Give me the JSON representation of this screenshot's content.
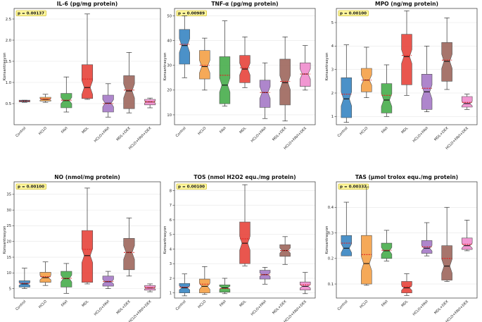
{
  "colors": {
    "blue": "#3c88c4",
    "orange": "#f5a24a",
    "green": "#4caf50",
    "red": "#e8483f",
    "purple": "#a87cc8",
    "brown": "#a06a60",
    "pink": "#f08fcf",
    "pvalue_bg": "#fff8a0",
    "mean_line": "#e02020"
  },
  "categories": [
    "Control",
    "HCLO",
    "FAVI",
    "MDL",
    "HCLO+FAVI",
    "MDL+DEX",
    "HCLO+FAVI+DEX"
  ],
  "chart_data": [
    {
      "type": "box",
      "title": "IL-6 (pg/mg protein)",
      "ylabel": "Konsantrasyon",
      "p_value": "p = 0.00137",
      "ylim": [
        0.0,
        2.75
      ],
      "yticks": [
        0.5,
        1.0,
        1.5,
        2.0,
        2.5
      ],
      "ytick_labels": [
        "0.5",
        "1.0",
        "1.5",
        "2.0",
        "2.5"
      ],
      "series": [
        {
          "name": "Control",
          "color": "blue",
          "whisker_low": 0.53,
          "q1": 0.54,
          "median": 0.56,
          "q3": 0.58,
          "whisker_high": 0.58,
          "mean": 0.56
        },
        {
          "name": "HCLO",
          "color": "orange",
          "whisker_low": 0.53,
          "q1": 0.56,
          "median": 0.6,
          "q3": 0.65,
          "whisker_high": 0.72,
          "mean": 0.61
        },
        {
          "name": "FAVI",
          "color": "green",
          "whisker_low": 0.3,
          "q1": 0.4,
          "median": 0.57,
          "q3": 0.74,
          "whisker_high": 1.13,
          "mean": 0.58
        },
        {
          "name": "MDL",
          "color": "red",
          "whisker_low": 0.6,
          "q1": 0.62,
          "median": 0.88,
          "q3": 1.42,
          "whisker_high": 2.62,
          "mean": 1.08
        },
        {
          "name": "HCLO+FAVI",
          "color": "purple",
          "whisker_low": 0.18,
          "q1": 0.3,
          "median": 0.51,
          "q3": 0.7,
          "whisker_high": 0.97,
          "mean": 0.5
        },
        {
          "name": "MDL+DEX",
          "color": "brown",
          "whisker_low": 0.28,
          "q1": 0.38,
          "median": 0.8,
          "q3": 1.16,
          "whisker_high": 1.71,
          "mean": 0.82
        },
        {
          "name": "HCLO+FAVI+DEX",
          "color": "pink",
          "whisker_low": 0.4,
          "q1": 0.47,
          "median": 0.54,
          "q3": 0.6,
          "whisker_high": 0.63,
          "mean": 0.54
        }
      ]
    },
    {
      "type": "box",
      "title": "TNF-α (pg/mg protein)",
      "ylabel": "Konsantrasyon",
      "p_value": "p = 0.00989",
      "ylim": [
        6,
        53
      ],
      "yticks": [
        10,
        20,
        30,
        40,
        50
      ],
      "ytick_labels": [
        "10",
        "20",
        "30",
        "40",
        "50"
      ],
      "series": [
        {
          "name": "Control",
          "color": "blue",
          "whisker_low": 25,
          "q1": 30.5,
          "median": 38,
          "q3": 44.5,
          "whisker_high": 50,
          "mean": 38.5
        },
        {
          "name": "HCLO",
          "color": "orange",
          "whisker_low": 20,
          "q1": 24.5,
          "median": 29.5,
          "q3": 36,
          "whisker_high": 41,
          "mean": 30
        },
        {
          "name": "FAVI",
          "color": "green",
          "whisker_low": 13.5,
          "q1": 14.5,
          "median": 22,
          "q3": 33.5,
          "whisker_high": 48,
          "mean": 26
        },
        {
          "name": "MDL",
          "color": "red",
          "whisker_low": 21,
          "q1": 23,
          "median": 28.5,
          "q3": 34,
          "whisker_high": 41.5,
          "mean": 29
        },
        {
          "name": "HCLO+FAVI",
          "color": "purple",
          "whisker_low": 8.5,
          "q1": 13,
          "median": 19,
          "q3": 24,
          "whisker_high": 31,
          "mean": 19
        },
        {
          "name": "MDL+DEX",
          "color": "brown",
          "whisker_low": 7.5,
          "q1": 14,
          "median": 23,
          "q3": 32.5,
          "whisker_high": 41.5,
          "mean": 23.5
        },
        {
          "name": "HCLO+FAVI+DEX",
          "color": "pink",
          "whisker_low": 20,
          "q1": 21.5,
          "median": 26.5,
          "q3": 31,
          "whisker_high": 38,
          "mean": 26.5
        }
      ]
    },
    {
      "type": "box",
      "title": "MPO (ng/mg protein)",
      "ylabel": "Konsantrasyon",
      "p_value": "p = 0.00100",
      "ylim": [
        0.65,
        5.6
      ],
      "yticks": [
        1,
        2,
        3,
        4,
        5
      ],
      "ytick_labels": [
        "1",
        "2",
        "3",
        "4",
        "5"
      ],
      "series": [
        {
          "name": "Control",
          "color": "blue",
          "whisker_low": 0.75,
          "q1": 0.95,
          "median": 1.75,
          "q3": 2.65,
          "whisker_high": 4.05,
          "mean": 1.95
        },
        {
          "name": "HCLO",
          "color": "orange",
          "whisker_low": 1.8,
          "q1": 2.05,
          "median": 2.55,
          "q3": 3.05,
          "whisker_high": 3.95,
          "mean": 2.55
        },
        {
          "name": "FAVI",
          "color": "green",
          "whisker_low": 1.0,
          "q1": 1.15,
          "median": 1.7,
          "q3": 2.4,
          "whisker_high": 3.2,
          "mean": 1.9
        },
        {
          "name": "MDL",
          "color": "red",
          "whisker_low": 1.9,
          "q1": 2.35,
          "median": 3.55,
          "q3": 4.5,
          "whisker_high": 5.5,
          "mean": 3.6
        },
        {
          "name": "HCLO+FAVI",
          "color": "purple",
          "whisker_low": 1.2,
          "q1": 1.3,
          "median": 2.05,
          "q3": 2.8,
          "whisker_high": 4.0,
          "mean": 2.2
        },
        {
          "name": "MDL+DEX",
          "color": "brown",
          "whisker_low": 2.15,
          "q1": 2.5,
          "median": 3.35,
          "q3": 4.15,
          "whisker_high": 5.2,
          "mean": 3.4
        },
        {
          "name": "HCLO+FAVI+DEX",
          "color": "pink",
          "whisker_low": 1.3,
          "q1": 1.4,
          "median": 1.55,
          "q3": 1.85,
          "whisker_high": 1.95,
          "mean": 1.6
        }
      ]
    },
    {
      "type": "box",
      "title": "NO (nmol/mg protein)",
      "ylabel": "Konsantrasyon",
      "p_value": "p = 0.00100",
      "ylim": [
        2,
        39
      ],
      "yticks": [
        5,
        10,
        15,
        20,
        25,
        30,
        35
      ],
      "ytick_labels": [
        "5",
        "10",
        "15",
        "20",
        "25",
        "30",
        "35"
      ],
      "series": [
        {
          "name": "Control",
          "color": "blue",
          "whisker_low": 5,
          "q1": 5.5,
          "median": 6.5,
          "q3": 7.5,
          "whisker_high": 11.5,
          "mean": 6.7
        },
        {
          "name": "HCLO",
          "color": "orange",
          "whisker_low": 6,
          "q1": 7,
          "median": 8.5,
          "q3": 10.2,
          "whisker_high": 13.5,
          "mean": 8.8
        },
        {
          "name": "FAVI",
          "color": "green",
          "whisker_low": 3.5,
          "q1": 5.5,
          "median": 8.2,
          "q3": 10.5,
          "whisker_high": 13,
          "mean": 8.3
        },
        {
          "name": "MDL",
          "color": "red",
          "whisker_low": 6.5,
          "q1": 7,
          "median": 15.5,
          "q3": 23.5,
          "whisker_high": 37,
          "mean": 17.5
        },
        {
          "name": "HCLO+FAVI",
          "color": "purple",
          "whisker_low": 5,
          "q1": 5.8,
          "median": 7.2,
          "q3": 9,
          "whisker_high": 10.5,
          "mean": 7.3
        },
        {
          "name": "MDL+DEX",
          "color": "brown",
          "whisker_low": 9,
          "q1": 11,
          "median": 16.5,
          "q3": 21,
          "whisker_high": 27.5,
          "mean": 16.5
        },
        {
          "name": "HCLO+FAVI+DEX",
          "color": "pink",
          "whisker_low": 4,
          "q1": 4.5,
          "median": 5.2,
          "q3": 6,
          "whisker_high": 6.5,
          "mean": 5.3
        }
      ]
    },
    {
      "type": "box",
      "title": "TOS (nmol H2O2 equ./mg protein)",
      "ylabel": "Konsantrasyon",
      "p_value": "p = 0.00100",
      "ylim": [
        0.65,
        8.6
      ],
      "yticks": [
        1,
        2,
        3,
        4,
        5,
        6,
        7,
        8
      ],
      "ytick_labels": [
        "1",
        "2",
        "3",
        "4",
        "5",
        "6",
        "7",
        "8"
      ],
      "series": [
        {
          "name": "Control",
          "color": "blue",
          "whisker_low": 0.8,
          "q1": 1.0,
          "median": 1.35,
          "q3": 1.65,
          "whisker_high": 2.3,
          "mean": 1.4
        },
        {
          "name": "HCLO",
          "color": "orange",
          "whisker_low": 0.9,
          "q1": 1.0,
          "median": 1.45,
          "q3": 1.95,
          "whisker_high": 2.8,
          "mean": 1.6
        },
        {
          "name": "FAVI",
          "color": "green",
          "whisker_low": 0.95,
          "q1": 1.05,
          "median": 1.35,
          "q3": 1.55,
          "whisker_high": 2.0,
          "mean": 1.3
        },
        {
          "name": "MDL",
          "color": "red",
          "whisker_low": 2.85,
          "q1": 3.0,
          "median": 4.4,
          "q3": 5.85,
          "whisker_high": 8.4,
          "mean": 4.7
        },
        {
          "name": "HCLO+FAVI",
          "color": "purple",
          "whisker_low": 1.6,
          "q1": 1.95,
          "median": 2.25,
          "q3": 2.55,
          "whisker_high": 2.75,
          "mean": 2.25
        },
        {
          "name": "MDL+DEX",
          "color": "brown",
          "whisker_low": 2.95,
          "q1": 3.5,
          "median": 3.9,
          "q3": 4.3,
          "whisker_high": 4.85,
          "mean": 3.9
        },
        {
          "name": "HCLO+FAVI+DEX",
          "color": "pink",
          "whisker_low": 0.95,
          "q1": 1.2,
          "median": 1.45,
          "q3": 1.75,
          "whisker_high": 2.4,
          "mean": 1.55
        }
      ]
    },
    {
      "type": "box",
      "title": "TAS (µmol trolox equ./mg protein)",
      "ylabel": "Konsantrasyon",
      "p_value": "p = 0.00337",
      "ylim": [
        0.045,
        0.5
      ],
      "yticks": [
        0.1,
        0.2,
        0.3,
        0.4
      ],
      "ytick_labels": [
        "0.1",
        "0.2",
        "0.3",
        "0.4"
      ],
      "series": [
        {
          "name": "Control",
          "color": "blue",
          "whisker_low": 0.21,
          "q1": 0.21,
          "median": 0.24,
          "q3": 0.29,
          "whisker_high": 0.42,
          "mean": 0.26
        },
        {
          "name": "HCLO",
          "color": "orange",
          "whisker_low": 0.095,
          "q1": 0.1,
          "median": 0.18,
          "q3": 0.29,
          "whisker_high": 0.48,
          "mean": 0.215
        },
        {
          "name": "FAVI",
          "color": "green",
          "whisker_low": 0.19,
          "q1": 0.2,
          "median": 0.23,
          "q3": 0.26,
          "whisker_high": 0.31,
          "mean": 0.232
        },
        {
          "name": "MDL",
          "color": "red",
          "whisker_low": 0.055,
          "q1": 0.065,
          "median": 0.085,
          "q3": 0.11,
          "whisker_high": 0.14,
          "mean": 0.09
        },
        {
          "name": "HCLO+FAVI",
          "color": "purple",
          "whisker_low": 0.21,
          "q1": 0.22,
          "median": 0.24,
          "q3": 0.27,
          "whisker_high": 0.34,
          "mean": 0.245
        },
        {
          "name": "MDL+DEX",
          "color": "brown",
          "whisker_low": 0.11,
          "q1": 0.115,
          "median": 0.17,
          "q3": 0.25,
          "whisker_high": 0.4,
          "mean": 0.2
        },
        {
          "name": "HCLO+FAVI+DEX",
          "color": "pink",
          "whisker_low": 0.23,
          "q1": 0.235,
          "median": 0.25,
          "q3": 0.28,
          "whisker_high": 0.35,
          "mean": 0.255
        }
      ]
    }
  ]
}
